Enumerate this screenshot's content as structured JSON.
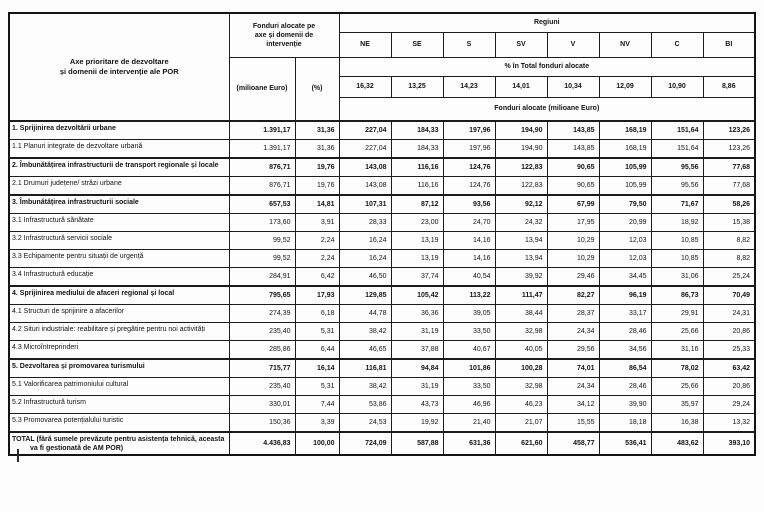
{
  "header": {
    "axis_col": "Axe prioritare de dezvoltare\nși domenii de intervenție ale POR",
    "fund_col": "Fonduri alocate pe\naxe și domenii de\nintervenție",
    "fund_sub_meur": "(milioane Euro)",
    "fund_sub_pct": "(%)",
    "regions_title": "Regiuni",
    "regions": [
      "NE",
      "SE",
      "S",
      "SV",
      "V",
      "NV",
      "C",
      "BI"
    ],
    "pct_total_label": "% în Total fonduri alocate",
    "pct_values": [
      "16,32",
      "13,25",
      "14,23",
      "14,01",
      "10,34",
      "12,09",
      "10,90",
      "8,86"
    ],
    "fund_alloc_label": "Fonduri alocate (milioane Euro)"
  },
  "rows": [
    {
      "label": "1. Sprijinirea dezvoltării urbane",
      "bold": true,
      "meur": "1.391,17",
      "pct": "31,36",
      "values": [
        "227,04",
        "184,33",
        "197,96",
        "194,90",
        "143,85",
        "168,19",
        "151,64",
        "123,26"
      ]
    },
    {
      "label": "1.1 Planuri integrate de dezvoltare urbană",
      "bold": false,
      "meur": "1.391,17",
      "pct": "31,36",
      "values": [
        "227,04",
        "184,33",
        "197,96",
        "194,90",
        "143,85",
        "168,19",
        "151,64",
        "123,26"
      ]
    },
    {
      "label": "2. Îmbunătățirea infrastructurii de transport regionale și locale",
      "bold": true,
      "meur": "876,71",
      "pct": "19,76",
      "values": [
        "143,08",
        "116,16",
        "124,76",
        "122,83",
        "90,65",
        "105,99",
        "95,56",
        "77,68"
      ]
    },
    {
      "label": "2.1 Drumuri județene/ străzi urbane",
      "bold": false,
      "meur": "876,71",
      "pct": "19,76",
      "values": [
        "143,08",
        "116,16",
        "124,76",
        "122,83",
        "90,65",
        "105,99",
        "95,56",
        "77,68"
      ]
    },
    {
      "label": "3. Îmbunătățirea infrastructurii sociale",
      "bold": true,
      "meur": "657,53",
      "pct": "14,81",
      "values": [
        "107,31",
        "87,12",
        "93,56",
        "92,12",
        "67,99",
        "79,50",
        "71,67",
        "58,26"
      ]
    },
    {
      "label": "3.1 Infrastructură sănătate",
      "bold": false,
      "meur": "173,60",
      "pct": "3,91",
      "values": [
        "28,33",
        "23,00",
        "24,70",
        "24,32",
        "17,95",
        "20,99",
        "18,92",
        "15,38"
      ]
    },
    {
      "label": "3.2 Infrastructură servicii sociale",
      "bold": false,
      "meur": "99,52",
      "pct": "2,24",
      "values": [
        "16,24",
        "13,19",
        "14,16",
        "13,94",
        "10,29",
        "12,03",
        "10,85",
        "8,82"
      ]
    },
    {
      "label": "3.3 Echipamente pentru situații de urgență",
      "bold": false,
      "meur": "99,52",
      "pct": "2,24",
      "values": [
        "16,24",
        "13,19",
        "14,16",
        "13,94",
        "10,29",
        "12,03",
        "10,85",
        "8,82"
      ]
    },
    {
      "label": "3.4 Infrastructură educație",
      "bold": false,
      "meur": "284,91",
      "pct": "6,42",
      "values": [
        "46,50",
        "37,74",
        "40,54",
        "39,92",
        "29,46",
        "34,45",
        "31,06",
        "25,24"
      ]
    },
    {
      "label": "4. Sprijinirea mediului de afaceri regional și local",
      "bold": true,
      "meur": "795,65",
      "pct": "17,93",
      "values": [
        "129,85",
        "105,42",
        "113,22",
        "111,47",
        "82,27",
        "96,19",
        "86,73",
        "70,49"
      ]
    },
    {
      "label": "4.1 Structuri de sprijinire a afacerilor",
      "bold": false,
      "meur": "274,39",
      "pct": "6,18",
      "values": [
        "44,78",
        "36,36",
        "39,05",
        "38,44",
        "28,37",
        "33,17",
        "29,91",
        "24,31"
      ]
    },
    {
      "label": "4.2 Situri industriale: reabilitare și pregătire pentru noi activități",
      "bold": false,
      "meur": "235,40",
      "pct": "5,31",
      "values": [
        "38,42",
        "31,19",
        "33,50",
        "32,98",
        "24,34",
        "28,46",
        "25,66",
        "20,86"
      ]
    },
    {
      "label": "4.3 Microîntreprinderi",
      "bold": false,
      "meur": "285,86",
      "pct": "6,44",
      "values": [
        "46,65",
        "37,88",
        "40,67",
        "40,05",
        "29,56",
        "34,56",
        "31,16",
        "25,33"
      ]
    },
    {
      "label": "5. Dezvoltarea și promovarea turismului",
      "bold": true,
      "meur": "715,77",
      "pct": "16,14",
      "values": [
        "116,81",
        "94,84",
        "101,86",
        "100,28",
        "74,01",
        "86,54",
        "78,02",
        "63,42"
      ]
    },
    {
      "label": "5.1 Valorificarea patrimoniului cultural",
      "bold": false,
      "meur": "235,40",
      "pct": "5,31",
      "values": [
        "38,42",
        "31,19",
        "33,50",
        "32,98",
        "24,34",
        "28,46",
        "25,66",
        "20,86"
      ]
    },
    {
      "label": "5.2 Infrastructură turism",
      "bold": false,
      "meur": "330,01",
      "pct": "7,44",
      "values": [
        "53,86",
        "43,73",
        "46,96",
        "46,23",
        "34,12",
        "39,90",
        "35,97",
        "29,24"
      ]
    },
    {
      "label": "5.3 Promovarea potențialului turistic",
      "bold": false,
      "meur": "150,36",
      "pct": "3,39",
      "values": [
        "24,53",
        "19,92",
        "21,40",
        "21,07",
        "15,55",
        "18,18",
        "16,38",
        "13,32"
      ]
    },
    {
      "label": "TOTAL (fără sumele prevăzute pentru asistența tehnică, aceasta va fi gestionată de AM POR)",
      "bold": true,
      "meur": "4.436,83",
      "pct": "100,00",
      "values": [
        "724,09",
        "587,88",
        "631,36",
        "621,60",
        "458,77",
        "536,41",
        "483,62",
        "393,10"
      ]
    }
  ]
}
